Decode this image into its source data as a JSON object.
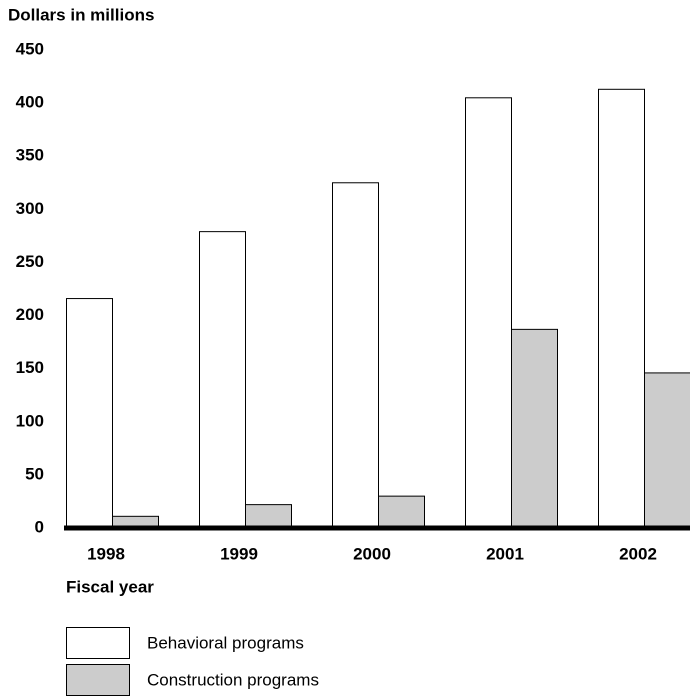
{
  "chart_data": {
    "type": "bar",
    "title": "Dollars in millions",
    "x_label": "Fiscal year",
    "categories": [
      "1998",
      "1999",
      "2000",
      "2001",
      "2002"
    ],
    "series": [
      {
        "name": "Behavioral programs",
        "color": "#ffffff",
        "values": [
          216,
          279,
          325,
          405,
          413
        ]
      },
      {
        "name": "Construction programs",
        "color": "#cccccc",
        "values": [
          11,
          22,
          30,
          187,
          146
        ]
      }
    ],
    "ylim": [
      0,
      450
    ],
    "yticks": [
      0,
      50,
      100,
      150,
      200,
      250,
      300,
      350,
      400,
      450
    ],
    "grid": false,
    "legend": "bottom"
  }
}
